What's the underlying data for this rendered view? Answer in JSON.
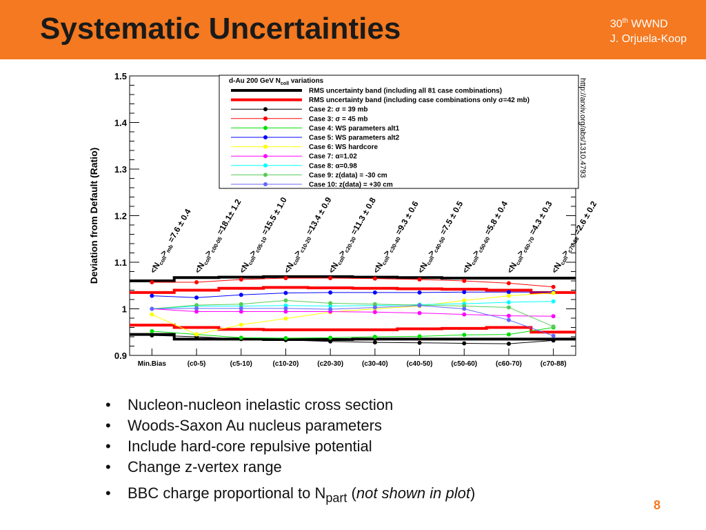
{
  "slide": {
    "title": "Systematic Uncertainties",
    "conference_number": "30",
    "conference_sup": "th",
    "conference_name": " WWND",
    "author": "J. Orjuela-Koop",
    "page_number": "8"
  },
  "bullets": [
    "Nucleon-nucleon inelastic cross section",
    "Woods-Saxon Au nucleus parameters",
    "Include hard-core repulsive potential",
    "Change z-vertex range"
  ],
  "bullet_last": {
    "prefix": "BBC charge proportional to N",
    "subscript": "part",
    "paren_open": " (",
    "italic": "not shown in plot",
    "paren_close": ")"
  },
  "bullet_symbol": "•",
  "chart_data": {
    "type": "line",
    "ylabel": "Deviation from Default (Ratio)",
    "ylim": [
      0.9,
      1.5
    ],
    "yticks": [
      "0.9",
      "1",
      "1.1",
      "1.2",
      "1.3",
      "1.4",
      "1.5"
    ],
    "categories": [
      "Min.Bias",
      "(c0-5)",
      "(c5-10)",
      "(c10-20)",
      "(c20-30)",
      "(c30-40)",
      "(c40-50)",
      "(c50-60)",
      "(c60-70)",
      "(c70-88)"
    ],
    "side_note": "http://arxiv.org/abs/1310.4793",
    "legend_header": "d-Au 200 GeV N",
    "legend_header_sub": "coll",
    "legend_header_tail": " variations",
    "legend": [
      {
        "label": "RMS uncertainty band (including all 81 case combinations)",
        "color": "#000000",
        "style": "thick"
      },
      {
        "label": "RMS uncertainty band (including case combinations only σ=42 mb)",
        "color": "#ff0000",
        "style": "thick"
      },
      {
        "label": "Case 2: σ = 39 mb",
        "color": "#000000",
        "style": "marker"
      },
      {
        "label": "Case 3: σ = 45 mb",
        "color": "#ff0000",
        "style": "marker"
      },
      {
        "label": "Case 4:  WS parameters alt1",
        "color": "#00dd00",
        "style": "marker"
      },
      {
        "label": "Case 5:  WS parameters alt2",
        "color": "#0000ff",
        "style": "marker"
      },
      {
        "label": "Case 6:  WS hardcore",
        "color": "#ffff00",
        "style": "marker"
      },
      {
        "label": "Case 7: α=1.02",
        "color": "#ff00ff",
        "style": "marker"
      },
      {
        "label": "Case 8: α=0.98",
        "color": "#00ffff",
        "style": "marker"
      },
      {
        "label": "Case 9:  z(data) = -30 cm",
        "color": "#55cc55",
        "style": "marker"
      },
      {
        "label": "Case 10: z(data) = +30 cm",
        "color": "#6666ff",
        "style": "marker"
      }
    ],
    "annotations": [
      {
        "main": "<N",
        "sub1": "coll",
        "mid": ">",
        "sub2": "mb",
        "tail": " =7.6 ± 0.4"
      },
      {
        "main": "<N",
        "sub1": "coll",
        "mid": ">",
        "sub2": "c00-05",
        "tail": " =18.1± 1.2"
      },
      {
        "main": "<N",
        "sub1": "coll",
        "mid": ">",
        "sub2": "c05-10",
        "tail": " =15.5 ± 1.0"
      },
      {
        "main": "<N",
        "sub1": "coll",
        "mid": ">",
        "sub2": "c10-20",
        "tail": " =13.4 ± 0.9"
      },
      {
        "main": "<N",
        "sub1": "coll",
        "mid": ">",
        "sub2": "c20-30",
        "tail": " =11.3 ± 0.8"
      },
      {
        "main": "<N",
        "sub1": "coll",
        "mid": ">",
        "sub2": "c30-40",
        "tail": " =9.3 ± 0.6"
      },
      {
        "main": "<N",
        "sub1": "coll",
        "mid": ">",
        "sub2": "c40-50",
        "tail": " =7.5 ± 0.5"
      },
      {
        "main": "<N",
        "sub1": "coll",
        "mid": ">",
        "sub2": "c50-60",
        "tail": " =5.8 ± 0.4"
      },
      {
        "main": "<N",
        "sub1": "coll",
        "mid": ">",
        "sub2": "c60-70",
        "tail": " =4.3 ± 0.3"
      },
      {
        "main": "<N",
        "sub1": "coll",
        "mid": ">",
        "sub2": "c70-88",
        "tail": " =2.6 ± 0.2"
      }
    ],
    "bands": [
      {
        "name": "RMS all 81 upper",
        "color": "#000000",
        "values": [
          1.06,
          1.067,
          1.068,
          1.069,
          1.069,
          1.068,
          1.067,
          1.066,
          1.066,
          1.066
        ]
      },
      {
        "name": "RMS all 81 lower",
        "color": "#000000",
        "values": [
          0.945,
          0.935,
          0.935,
          0.934,
          0.934,
          0.935,
          0.935,
          0.935,
          0.935,
          0.935
        ]
      },
      {
        "name": "RMS sigma=42 upper",
        "color": "#ff0000",
        "values": [
          1.035,
          1.04,
          1.044,
          1.046,
          1.045,
          1.044,
          1.043,
          1.042,
          1.04,
          1.035
        ]
      },
      {
        "name": "RMS sigma=42 lower",
        "color": "#ff0000",
        "values": [
          0.965,
          0.96,
          0.956,
          0.955,
          0.955,
          0.955,
          0.957,
          0.958,
          0.96,
          0.95
        ]
      }
    ],
    "series": [
      {
        "name": "Case 2: σ = 39 mb",
        "color": "#000000",
        "values": [
          0.943,
          0.94,
          0.935,
          0.933,
          0.93,
          0.928,
          0.927,
          0.926,
          0.925,
          0.932
        ]
      },
      {
        "name": "Case 3: σ = 45 mb",
        "color": "#ff0000",
        "values": [
          1.057,
          1.057,
          1.063,
          1.066,
          1.066,
          1.065,
          1.063,
          1.06,
          1.055,
          1.047
        ]
      },
      {
        "name": "Case 4:  WS parameters alt1",
        "color": "#00dd00",
        "values": [
          0.952,
          0.945,
          0.938,
          0.937,
          0.938,
          0.94,
          0.941,
          0.944,
          0.945,
          0.96
        ]
      },
      {
        "name": "Case 5:  WS parameters alt2",
        "color": "#0000ff",
        "values": [
          1.028,
          1.024,
          1.03,
          1.034,
          1.035,
          1.035,
          1.035,
          1.036,
          1.036,
          1.036
        ]
      },
      {
        "name": "Case 6:  WS hardcore",
        "color": "#ffff00",
        "values": [
          0.988,
          0.945,
          0.966,
          0.979,
          0.993,
          1.0,
          1.006,
          1.018,
          1.028,
          1.034
        ]
      },
      {
        "name": "Case 7: α=1.02",
        "color": "#ff00ff",
        "values": [
          1.0,
          0.994,
          0.994,
          0.994,
          0.994,
          0.993,
          0.991,
          0.988,
          0.985,
          0.984
        ]
      },
      {
        "name": "Case 8: α=0.98",
        "color": "#00ffff",
        "values": [
          1.0,
          1.006,
          1.006,
          1.007,
          1.006,
          1.007,
          1.009,
          1.011,
          1.014,
          1.016
        ]
      },
      {
        "name": "Case 9:  z(data) = -30 cm",
        "color": "#55cc55",
        "values": [
          1.0,
          1.008,
          1.01,
          1.018,
          1.012,
          1.01,
          1.008,
          1.006,
          1.003,
          0.962
        ]
      },
      {
        "name": "Case 10: z(data) = +30 cm",
        "color": "#6666ff",
        "values": [
          1.0,
          1.001,
          1.001,
          1.001,
          0.999,
          1.003,
          1.007,
          1.0,
          0.976,
          0.942
        ]
      }
    ]
  }
}
